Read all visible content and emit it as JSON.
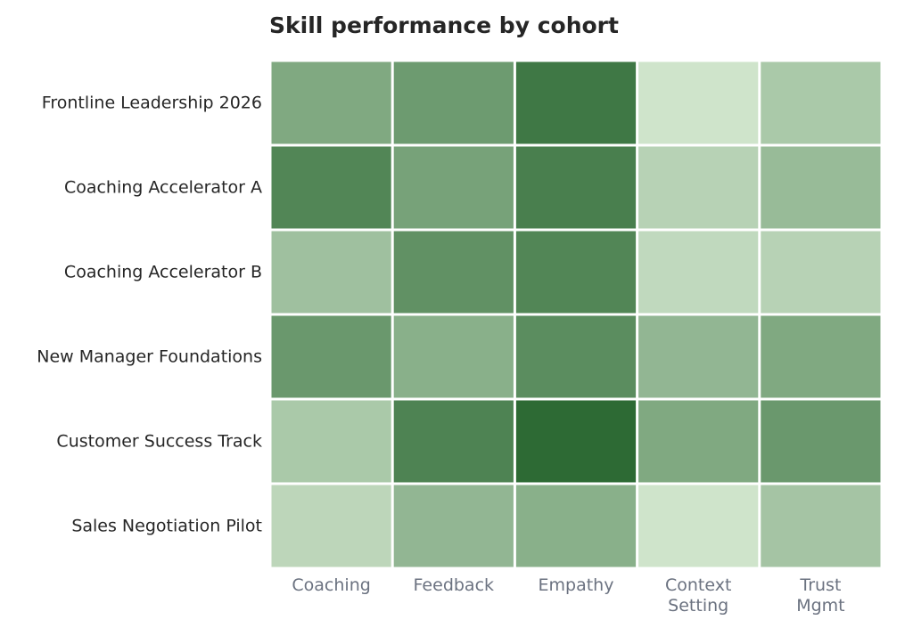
{
  "chart_data": {
    "type": "heatmap",
    "title": "Skill performance by cohort",
    "rows": [
      "Frontline Leadership 2026",
      "Coaching Accelerator A",
      "Coaching Accelerator B",
      "New Manager Foundations",
      "Customer Success Track",
      "Sales Negotiation Pilot"
    ],
    "columns": [
      [
        "Coaching"
      ],
      [
        "Feedback"
      ],
      [
        "Empathy"
      ],
      [
        "Context",
        "Setting"
      ],
      [
        "Trust",
        "Mgmt"
      ]
    ],
    "values": [
      [
        0.55,
        0.65,
        0.9,
        0.12,
        0.32
      ],
      [
        0.8,
        0.6,
        0.85,
        0.25,
        0.42
      ],
      [
        0.38,
        0.72,
        0.8,
        0.2,
        0.25
      ],
      [
        0.67,
        0.5,
        0.75,
        0.45,
        0.55
      ],
      [
        0.32,
        0.82,
        1.0,
        0.55,
        0.67
      ],
      [
        0.22,
        0.45,
        0.5,
        0.12,
        0.35
      ]
    ],
    "value_range": [
      0,
      1
    ],
    "color_scale": {
      "low": "#e5f5e0",
      "high": "#2d6a34"
    },
    "grid": false,
    "legend": "none"
  }
}
